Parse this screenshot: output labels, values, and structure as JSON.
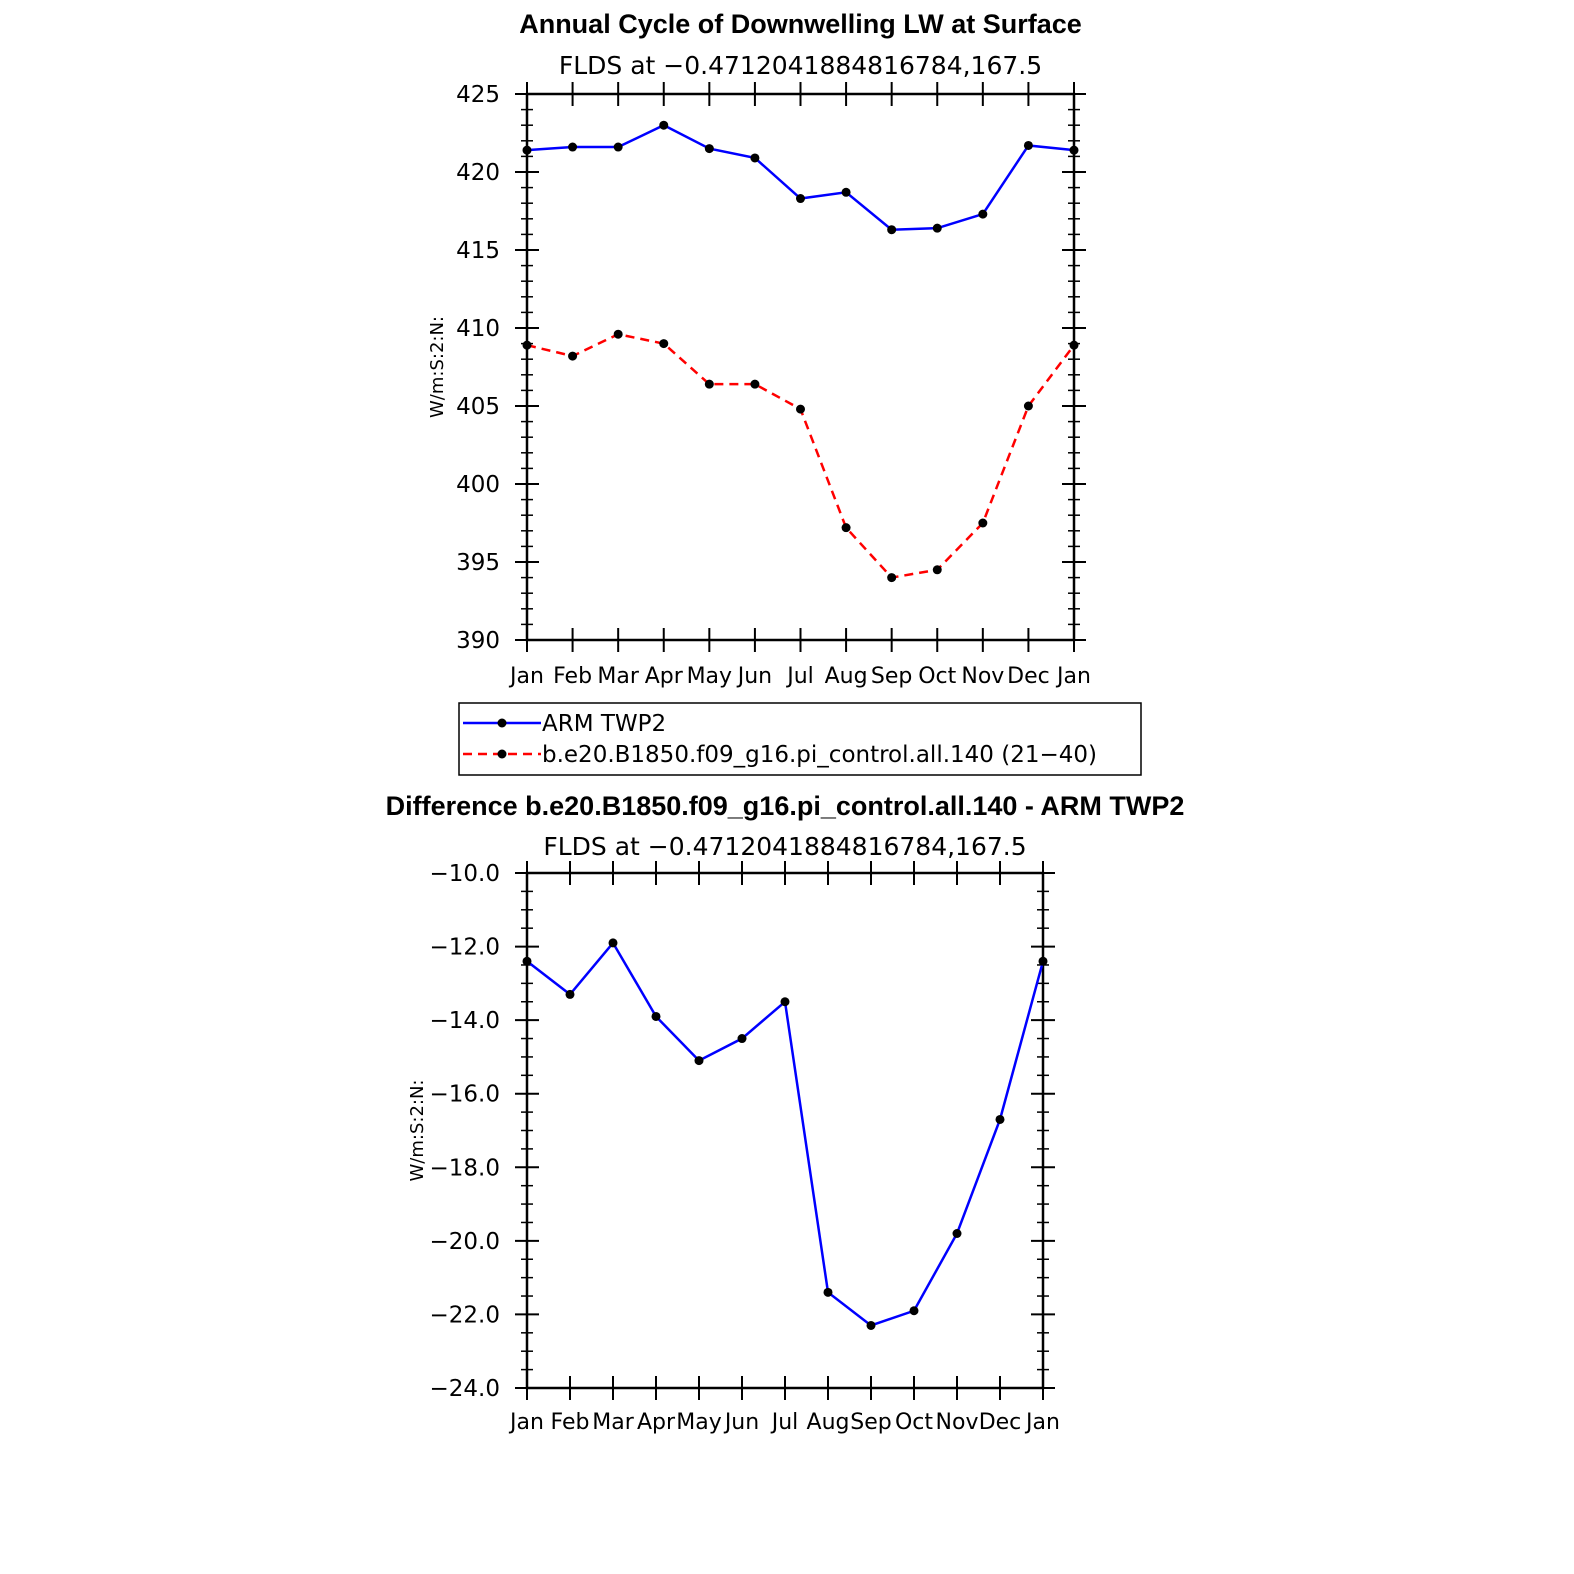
{
  "chart_data": [
    {
      "type": "line",
      "title": "Annual Cycle of Downwelling LW at Surface",
      "subtitle": "FLDS at −0.4712041884816784,167.5",
      "ylabel": "W/m:S:2:N:",
      "xlabel": "",
      "categories": [
        "Jan",
        "Feb",
        "Mar",
        "Apr",
        "May",
        "Jun",
        "Jul",
        "Aug",
        "Sep",
        "Oct",
        "Nov",
        "Dec",
        "Jan"
      ],
      "ylim": [
        390,
        425
      ],
      "yticks": [
        "390",
        "395",
        "400",
        "405",
        "410",
        "415",
        "420",
        "425"
      ],
      "grid": false,
      "series": [
        {
          "name": "ARM TWP2",
          "color": "#0000ff",
          "dash": "solid",
          "values": [
            421.4,
            421.6,
            421.6,
            423.0,
            421.5,
            420.9,
            418.3,
            418.7,
            416.3,
            416.4,
            417.3,
            421.7,
            421.4
          ]
        },
        {
          "name": "b.e20.B1850.f09_g16.pi_control.all.140 (21−40)",
          "color": "#ff0000",
          "dash": "dashed",
          "values": [
            408.9,
            408.2,
            409.6,
            409.0,
            406.4,
            406.4,
            404.8,
            397.2,
            394.0,
            394.5,
            397.5,
            405.0,
            408.9
          ]
        }
      ],
      "legend": "below"
    },
    {
      "type": "line",
      "title": "Difference b.e20.B1850.f09_g16.pi_control.all.140 - ARM TWP2",
      "subtitle": "FLDS at −0.4712041884816784,167.5",
      "ylabel": "W/m:S:2:N:",
      "xlabel": "",
      "categories": [
        "Jan",
        "Feb",
        "Mar",
        "Apr",
        "May",
        "Jun",
        "Jul",
        "Aug",
        "Sep",
        "Oct",
        "Nov",
        "Dec",
        "Jan"
      ],
      "ylim": [
        -24,
        -10
      ],
      "yticks": [
        "−24.0",
        "−22.0",
        "−20.0",
        "−18.0",
        "−16.0",
        "−14.0",
        "−12.0",
        "−10.0"
      ],
      "grid": false,
      "series": [
        {
          "name": "Difference",
          "color": "#0000ff",
          "dash": "solid",
          "values": [
            -12.4,
            -13.3,
            -11.9,
            -13.9,
            -15.1,
            -14.5,
            -13.5,
            -21.4,
            -22.3,
            -21.9,
            -19.8,
            -16.7,
            -12.4
          ]
        }
      ]
    }
  ]
}
